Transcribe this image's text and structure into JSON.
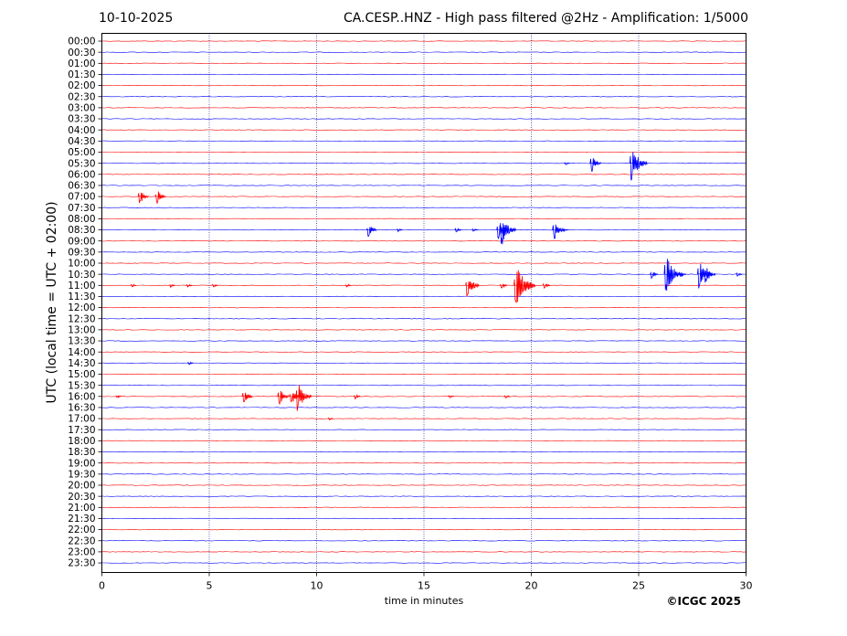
{
  "header": {
    "date": "10-10-2025",
    "title": "CA.CESP..HNZ - High pass filtered @2Hz - Amplification: 1/5000"
  },
  "credit": "©ICGC 2025",
  "chart_data": {
    "type": "line",
    "title": "CA.CESP..HNZ - High pass filtered @2Hz - Amplification: 1/5000",
    "xlabel": "time in minutes",
    "ylabel": "UTC (local time = UTC + 02:00)",
    "xlim": [
      0,
      30
    ],
    "xticks": [
      0,
      5,
      10,
      15,
      20,
      25,
      30
    ],
    "grid": "vertical dotted at each x tick",
    "row_labels": [
      "00:00",
      "00:30",
      "01:00",
      "01:30",
      "02:00",
      "02:30",
      "03:00",
      "03:30",
      "04:00",
      "04:30",
      "05:00",
      "05:30",
      "06:00",
      "06:30",
      "07:00",
      "07:30",
      "08:00",
      "08:30",
      "09:00",
      "09:30",
      "10:00",
      "10:30",
      "11:00",
      "11:30",
      "12:00",
      "12:30",
      "13:00",
      "13:30",
      "14:00",
      "14:30",
      "15:00",
      "15:30",
      "16:00",
      "16:30",
      "17:00",
      "17:30",
      "18:00",
      "18:30",
      "19:00",
      "19:30",
      "20:00",
      "20:30",
      "21:00",
      "21:30",
      "22:00",
      "22:30",
      "23:00",
      "23:30"
    ],
    "trace_colors": [
      "#ff0000",
      "#0000ff"
    ],
    "events": [
      {
        "row": "05:30",
        "t": 21.6,
        "amp": 0.1
      },
      {
        "row": "05:30",
        "t": 22.8,
        "amp": 0.5
      },
      {
        "row": "05:30",
        "t": 24.65,
        "amp": 1.0
      },
      {
        "row": "07:00",
        "t": 1.75,
        "amp": 0.45
      },
      {
        "row": "07:00",
        "t": 2.55,
        "amp": 0.45
      },
      {
        "row": "08:30",
        "t": 12.4,
        "amp": 0.4
      },
      {
        "row": "08:30",
        "t": 13.8,
        "amp": 0.1
      },
      {
        "row": "08:30",
        "t": 16.5,
        "amp": 0.15
      },
      {
        "row": "08:30",
        "t": 17.3,
        "amp": 0.12
      },
      {
        "row": "08:30",
        "t": 18.45,
        "amp": 0.5
      },
      {
        "row": "08:30",
        "t": 18.6,
        "amp": 0.9
      },
      {
        "row": "08:30",
        "t": 21.05,
        "amp": 0.6
      },
      {
        "row": "08:30",
        "t": 21.5,
        "amp": 0.1
      },
      {
        "row": "10:30",
        "t": 25.6,
        "amp": 0.25
      },
      {
        "row": "10:30",
        "t": 26.25,
        "amp": 1.1
      },
      {
        "row": "10:30",
        "t": 27.0,
        "amp": 0.12
      },
      {
        "row": "10:30",
        "t": 27.8,
        "amp": 0.75
      },
      {
        "row": "10:30",
        "t": 28.1,
        "amp": 0.55
      },
      {
        "row": "10:30",
        "t": 29.6,
        "amp": 0.12
      },
      {
        "row": "11:00",
        "t": 1.4,
        "amp": 0.1
      },
      {
        "row": "11:00",
        "t": 3.2,
        "amp": 0.12
      },
      {
        "row": "11:00",
        "t": 4.0,
        "amp": 0.1
      },
      {
        "row": "11:00",
        "t": 5.2,
        "amp": 0.12
      },
      {
        "row": "11:00",
        "t": 11.4,
        "amp": 0.1
      },
      {
        "row": "11:00",
        "t": 17.0,
        "amp": 0.7
      },
      {
        "row": "11:00",
        "t": 18.6,
        "amp": 0.2
      },
      {
        "row": "11:00",
        "t": 19.25,
        "amp": 1.3
      },
      {
        "row": "11:00",
        "t": 20.6,
        "amp": 0.2
      },
      {
        "row": "14:30",
        "t": 4.05,
        "amp": 0.1
      },
      {
        "row": "16:00",
        "t": 0.7,
        "amp": 0.1
      },
      {
        "row": "16:00",
        "t": 6.6,
        "amp": 0.45
      },
      {
        "row": "16:00",
        "t": 8.25,
        "amp": 0.5
      },
      {
        "row": "16:00",
        "t": 8.8,
        "amp": 0.5
      },
      {
        "row": "16:00",
        "t": 9.1,
        "amp": 0.85
      },
      {
        "row": "16:00",
        "t": 11.8,
        "amp": 0.15
      },
      {
        "row": "16:00",
        "t": 16.2,
        "amp": 0.1
      },
      {
        "row": "16:00",
        "t": 18.8,
        "amp": 0.1
      },
      {
        "row": "17:00",
        "t": 10.6,
        "amp": 0.08
      }
    ]
  }
}
